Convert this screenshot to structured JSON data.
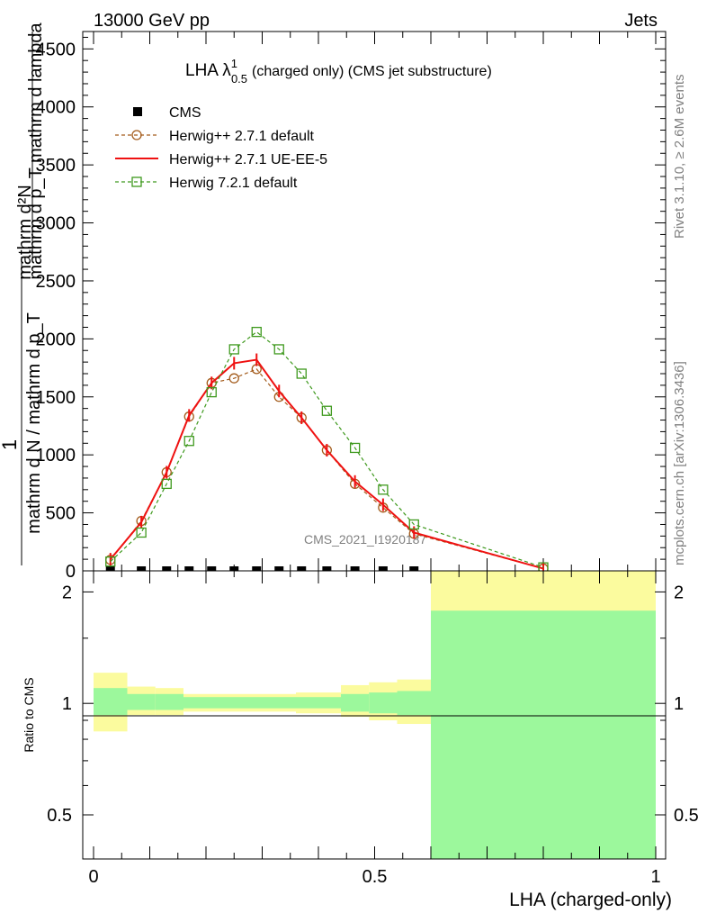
{
  "header": {
    "energy_label": "13000 GeV pp",
    "process_label": "Jets",
    "watermark": "CMS_2021_I1920187",
    "rivet_label": "Rivet 3.1.10, ≥ 2.6M events",
    "mcplots_label": "mcplots.cern.ch [arXiv:1306.3436]"
  },
  "chart_data": [
    {
      "type": "line",
      "title_main": "LHA λ",
      "title_sup": "1",
      "title_sub": "0.5",
      "title_rest": "(charged only) (CMS jet substructure)",
      "ylabel_numerator": "mathrm d²N",
      "ylabel_denominator": "mathrm d p_T mathrm d lambda",
      "ylabel_prefix": "1",
      "ylabel_norm": "mathrm d N / mathrm d p_T",
      "xlim": [
        0,
        1
      ],
      "ylim": [
        0,
        4650
      ],
      "yticks": [
        0,
        500,
        1000,
        1500,
        2000,
        2500,
        3000,
        3500,
        4000,
        4500
      ],
      "ytick_labels": [
        "0",
        "500",
        "1000",
        "1500",
        "2000",
        "2500",
        "3000",
        "3500",
        "4000",
        "4500"
      ],
      "legend": [
        "CMS",
        "Herwig++ 2.7.1 default",
        "Herwig++ 2.7.1 UE-EE-5",
        "Herwig 7.2.1 default"
      ],
      "series": [
        {
          "name": "CMS",
          "x": [
            0.03,
            0.085,
            0.13,
            0.17,
            0.21,
            0.25,
            0.29,
            0.33,
            0.37,
            0.415,
            0.465,
            0.515,
            0.57
          ],
          "values": [
            0,
            0,
            0,
            0,
            0,
            0,
            0,
            0,
            0,
            0,
            0,
            0,
            0
          ]
        },
        {
          "name": "Herwig++ 2.7.1 default",
          "x": [
            0.03,
            0.085,
            0.13,
            0.17,
            0.21,
            0.25,
            0.29,
            0.33,
            0.37,
            0.415,
            0.465,
            0.515,
            0.57,
            0.8
          ],
          "values": [
            95,
            430,
            850,
            1330,
            1620,
            1660,
            1740,
            1500,
            1320,
            1040,
            750,
            545,
            320,
            20
          ]
        },
        {
          "name": "Herwig++ 2.7.1 UE-EE-5",
          "x": [
            0.03,
            0.085,
            0.13,
            0.17,
            0.21,
            0.25,
            0.29,
            0.33,
            0.37,
            0.415,
            0.465,
            0.515,
            0.57,
            0.8
          ],
          "values": [
            100,
            420,
            850,
            1340,
            1620,
            1790,
            1820,
            1550,
            1320,
            1040,
            770,
            570,
            330,
            20
          ]
        },
        {
          "name": "Herwig 7.2.1 default",
          "x": [
            0.03,
            0.085,
            0.13,
            0.17,
            0.21,
            0.25,
            0.29,
            0.33,
            0.37,
            0.415,
            0.465,
            0.515,
            0.57,
            0.8
          ],
          "values": [
            80,
            330,
            750,
            1120,
            1540,
            1910,
            2060,
            1910,
            1700,
            1380,
            1060,
            700,
            400,
            30
          ]
        }
      ]
    },
    {
      "type": "area",
      "ylabel": "Ratio to CMS",
      "xlabel": "LHA (charged-only)",
      "xlim": [
        0,
        1
      ],
      "ylim": [
        0.38,
        2.28
      ],
      "yscale": "log",
      "yticks": [
        0.5,
        1,
        2
      ],
      "ytick_labels": [
        "0.5",
        "1",
        "2"
      ],
      "xticks": [
        0,
        0.5,
        1
      ],
      "xtick_labels": [
        "0",
        "0.5",
        "1"
      ],
      "bins": [
        0,
        0.06,
        0.11,
        0.16,
        0.2,
        0.24,
        0.28,
        0.32,
        0.36,
        0.4,
        0.44,
        0.49,
        0.54,
        0.6,
        1.0
      ],
      "stat_band_low": [
        0.93,
        0.96,
        0.96,
        0.97,
        0.97,
        0.97,
        0.97,
        0.97,
        0.97,
        0.97,
        0.95,
        0.94,
        0.93,
        0.35
      ],
      "stat_band_high": [
        1.1,
        1.06,
        1.06,
        1.04,
        1.04,
        1.04,
        1.04,
        1.04,
        1.04,
        1.04,
        1.06,
        1.07,
        1.08,
        1.78
      ],
      "total_band_low": [
        0.84,
        0.93,
        0.93,
        0.95,
        0.95,
        0.95,
        0.95,
        0.95,
        0.94,
        0.94,
        0.92,
        0.9,
        0.88,
        0.35
      ],
      "total_band_high": [
        1.21,
        1.11,
        1.1,
        1.06,
        1.06,
        1.06,
        1.06,
        1.06,
        1.07,
        1.07,
        1.12,
        1.14,
        1.16,
        2.28
      ],
      "colors": {
        "stat": "#9cf89c",
        "total": "#fbfb9e"
      }
    }
  ],
  "colors": {
    "cms": "#000000",
    "herwig_default": "#a45c1c",
    "herwig_ueee5": "#ef1111",
    "herwig7": "#3e991d"
  }
}
